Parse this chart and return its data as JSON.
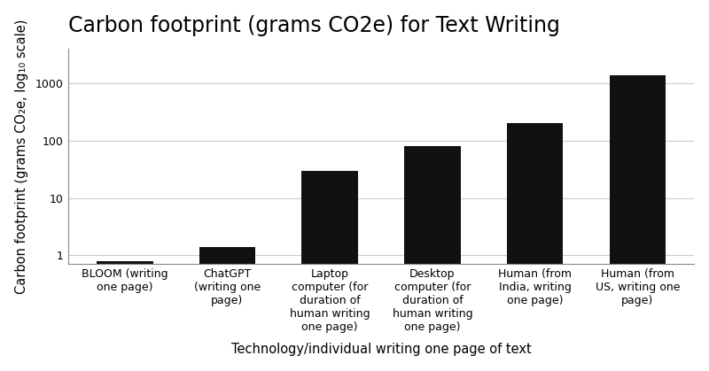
{
  "title": "Carbon footprint (grams CO2e) for Text Writing",
  "xlabel": "Technology/individual writing one page of text",
  "ylabel": "Carbon footprint (grams CO₂e, log₁₀ scale)",
  "categories": [
    "BLOOM (writing\none page)",
    "ChatGPT\n(writing one\npage)",
    "Laptop\ncomputer (for\nduration of\nhuman writing\none page)",
    "Desktop\ncomputer (for\nduration of\nhuman writing\none page)",
    "Human (from\nIndia, writing\none page)",
    "Human (from\nUS, writing one\npage)"
  ],
  "values": [
    0.8,
    1.4,
    30,
    80,
    200,
    1400
  ],
  "bar_color": "#111111",
  "ylim": [
    0.7,
    4000
  ],
  "yticks": [
    1,
    10,
    100,
    1000
  ],
  "ytick_labels": [
    "1",
    "10",
    "100",
    "1000"
  ],
  "background_color": "#ffffff",
  "title_fontsize": 17,
  "axis_label_fontsize": 10.5,
  "tick_label_fontsize": 9,
  "grid_color": "#cccccc",
  "bar_width": 0.55
}
